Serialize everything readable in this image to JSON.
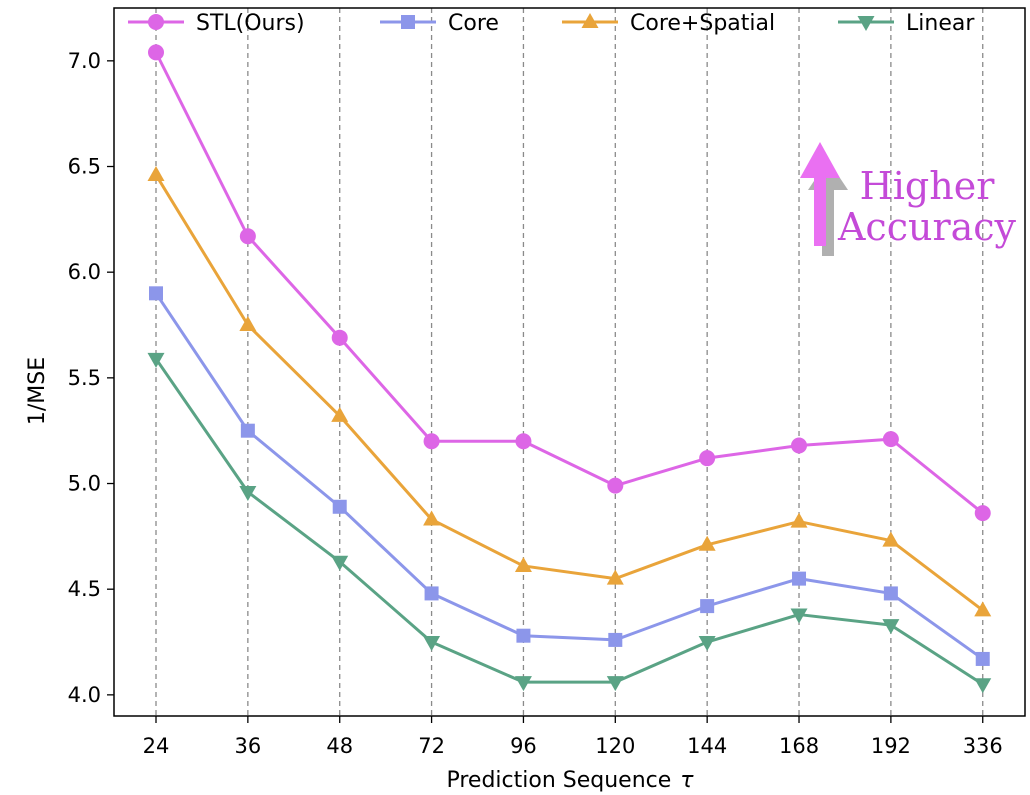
{
  "chart_data": {
    "type": "line",
    "title": "",
    "xlabel": "Prediction Sequence",
    "xlabel_symbol": "τ",
    "ylabel": "1/MSE",
    "categories": [
      "24",
      "36",
      "48",
      "72",
      "96",
      "120",
      "144",
      "168",
      "192",
      "336"
    ],
    "ylim": [
      3.9,
      7.25
    ],
    "yticks": [
      "4.0",
      "4.5",
      "5.0",
      "5.5",
      "6.0",
      "6.5",
      "7.0"
    ],
    "grid": "vertical-dashed",
    "legend_position": "top",
    "series": [
      {
        "name": "STL(Ours)",
        "color": "#dd66e6",
        "marker": "circle",
        "values": [
          7.04,
          6.17,
          5.69,
          5.2,
          5.2,
          4.99,
          5.12,
          5.18,
          5.21,
          4.86
        ]
      },
      {
        "name": "Core",
        "color": "#8c96ea",
        "marker": "square",
        "values": [
          5.9,
          5.25,
          4.89,
          4.48,
          4.28,
          4.26,
          4.42,
          4.55,
          4.48,
          4.17
        ]
      },
      {
        "name": "Core+Spatial",
        "color": "#e9a43a",
        "marker": "triangle-up",
        "values": [
          6.46,
          5.75,
          5.32,
          4.83,
          4.61,
          4.55,
          4.71,
          4.82,
          4.73,
          4.4
        ]
      },
      {
        "name": "Linear",
        "color": "#5aa385",
        "marker": "triangle-down",
        "values": [
          5.59,
          4.96,
          4.63,
          4.25,
          4.06,
          4.06,
          4.25,
          4.38,
          4.33,
          4.05
        ]
      }
    ],
    "annotation": {
      "line1": "Higher",
      "line2": "Accuracy",
      "color": "#c44ad8",
      "arrow_color": "#ea70f2",
      "arrow_shadow_color": "#b0b0b0"
    }
  }
}
